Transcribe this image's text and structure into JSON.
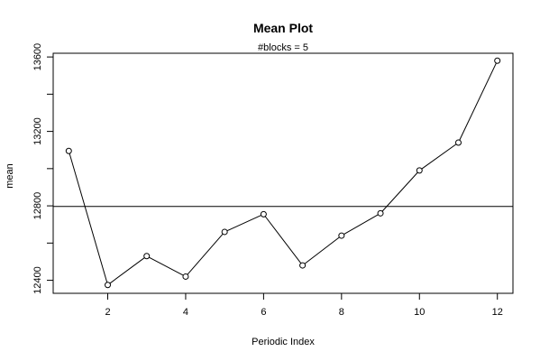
{
  "chart_data": {
    "type": "line",
    "title": "Mean Plot",
    "subtitle": "#blocks =  5",
    "xlabel": "Periodic Index",
    "ylabel": "mean",
    "xlim": [
      0.6,
      12.4
    ],
    "ylim": [
      12330,
      13620
    ],
    "xticks": [
      2,
      4,
      6,
      8,
      10,
      12
    ],
    "yticks": [
      12400,
      12800,
      13200,
      13600
    ],
    "yticks_minor": [
      12600,
      13000,
      13400
    ],
    "series": [
      {
        "x": [
          1,
          2,
          3,
          4,
          5,
          6,
          7,
          8,
          9,
          10,
          11,
          12
        ],
        "values": [
          13095,
          12375,
          12530,
          12420,
          12660,
          12755,
          12480,
          12640,
          12760,
          12990,
          13140,
          13580
        ],
        "marker": "open-circle",
        "color": "#000000"
      }
    ],
    "hline": 12797,
    "grid": false,
    "legend": "none"
  }
}
